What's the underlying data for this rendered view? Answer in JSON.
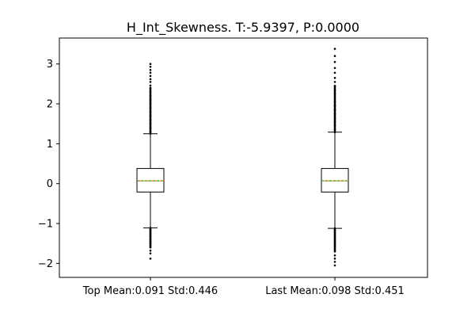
{
  "chart_data": {
    "type": "boxplot",
    "title": "H_Int_Skewness. T:-5.9397, P:0.0000",
    "xlabel": "",
    "ylabel": "",
    "ylim": [
      -2.35,
      3.65
    ],
    "yticks": [
      -2,
      -1,
      0,
      1,
      2,
      3
    ],
    "ytick_labels": [
      "−2",
      "−1",
      "0",
      "1",
      "2",
      "3"
    ],
    "grid": false,
    "categories": [
      "Top Mean:0.091 Std:0.446",
      "Last Mean:0.098 Std:0.451"
    ],
    "boxes": [
      {
        "label": "Top Mean:0.091 Std:0.446",
        "q1": -0.21,
        "median": 0.07,
        "mean": 0.091,
        "q3": 0.38,
        "whisker_low": -1.11,
        "whisker_high": 1.25,
        "outliers_high": [
          1.3,
          1.4,
          1.5,
          1.6,
          1.7,
          1.8,
          1.9,
          2.0,
          2.1,
          2.2,
          2.3,
          2.4,
          2.46,
          2.55,
          2.62,
          2.7,
          2.78,
          2.85,
          2.93,
          3.0
        ],
        "outliers_low": [
          -1.15,
          -1.2,
          -1.25,
          -1.3,
          -1.35,
          -1.4,
          -1.45,
          -1.5,
          -1.55,
          -1.6,
          -1.68,
          -1.75,
          -1.88
        ]
      },
      {
        "label": "Last Mean:0.098 Std:0.451",
        "q1": -0.21,
        "median": 0.07,
        "mean": 0.098,
        "q3": 0.38,
        "whisker_low": -1.12,
        "whisker_high": 1.29,
        "outliers_high": [
          1.35,
          1.45,
          1.55,
          1.65,
          1.75,
          1.85,
          1.95,
          2.05,
          2.15,
          2.25,
          2.35,
          2.45,
          2.55,
          2.65,
          2.78,
          2.9,
          3.05,
          3.2,
          3.38
        ],
        "outliers_low": [
          -1.16,
          -1.22,
          -1.28,
          -1.34,
          -1.4,
          -1.46,
          -1.52,
          -1.58,
          -1.64,
          -1.7,
          -1.8,
          -1.88,
          -1.96,
          -2.05
        ]
      }
    ],
    "colors": {
      "box": "#000000",
      "median": "#ff7f0e",
      "mean": "#2ca02c",
      "outlier": "#000000"
    }
  }
}
